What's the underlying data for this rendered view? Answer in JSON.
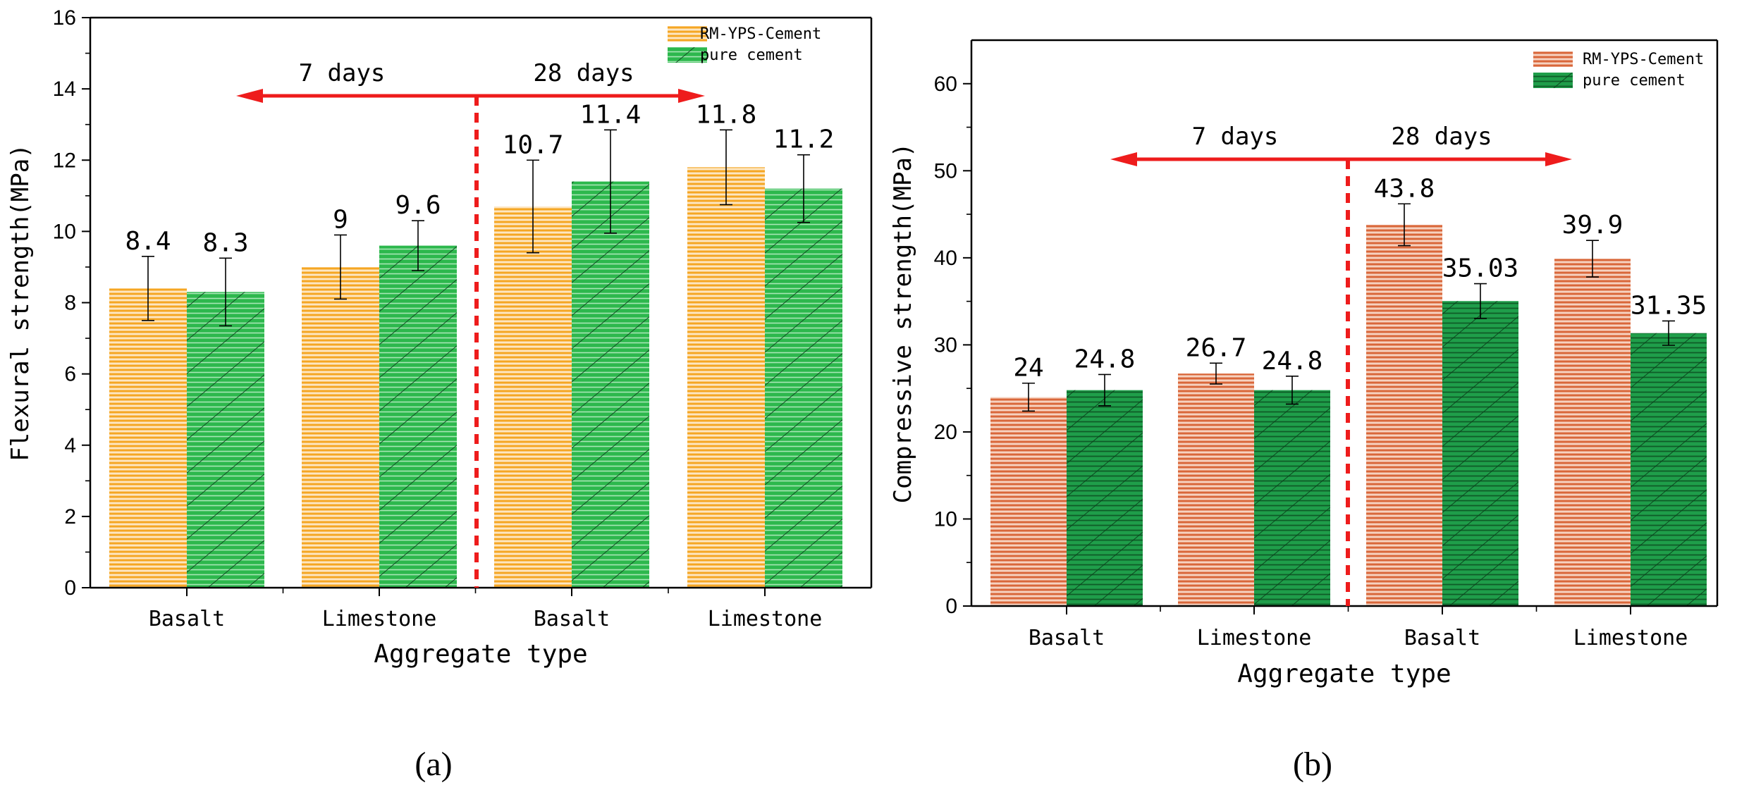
{
  "figure": {
    "panel_labels": [
      "(a)",
      "(b)"
    ]
  },
  "chart_data": [
    {
      "type": "bar",
      "panel": "(a)",
      "title": "",
      "xlabel": "Aggregate type",
      "ylabel": "Flexural strength(MPa)",
      "ylim": [
        0,
        16
      ],
      "yticks": [
        0,
        2,
        4,
        6,
        8,
        10,
        12,
        14,
        16
      ],
      "ytick_labels": [
        "0",
        "2",
        "4",
        "6",
        "8",
        "10",
        "12",
        "14",
        "16"
      ],
      "categories": [
        "Basalt",
        "Limestone",
        "Basalt",
        "Limestone"
      ],
      "series": [
        {
          "name": "RM-YPS-Cement",
          "values": [
            8.4,
            9,
            10.7,
            11.8
          ],
          "errors": [
            0.9,
            0.9,
            1.3,
            1.05
          ],
          "labels": [
            "8.4",
            "9",
            "10.7",
            "11.8"
          ],
          "color": "#f5a623"
        },
        {
          "name": "pure cement",
          "values": [
            8.3,
            9.6,
            11.4,
            11.2
          ],
          "errors": [
            0.95,
            0.7,
            1.45,
            0.95
          ],
          "labels": [
            "8.3",
            "9.6",
            "11.4",
            "11.2"
          ],
          "color": "#2db84d"
        }
      ],
      "annotations": {
        "left": "7 days",
        "right": "28 days"
      },
      "legend_position": "top-right"
    },
    {
      "type": "bar",
      "panel": "(b)",
      "title": "",
      "xlabel": "Aggregate type",
      "ylabel": "Compressive strength(MPa)",
      "ylim": [
        0,
        65
      ],
      "yticks": [
        0,
        10,
        20,
        30,
        40,
        50,
        60
      ],
      "ytick_labels": [
        "0",
        "10",
        "20",
        "30",
        "40",
        "50",
        "60"
      ],
      "categories": [
        "Basalt",
        "Limestone",
        "Basalt",
        "Limestone"
      ],
      "series": [
        {
          "name": "RM-YPS-Cement",
          "values": [
            24,
            26.7,
            43.8,
            39.9
          ],
          "errors": [
            1.6,
            1.2,
            2.4,
            2.1
          ],
          "labels": [
            "24",
            "26.7",
            "43.8",
            "39.9"
          ],
          "color": "#d9673a"
        },
        {
          "name": "pure cement",
          "values": [
            24.8,
            24.8,
            35.03,
            31.35
          ],
          "errors": [
            1.8,
            1.6,
            2.0,
            1.4
          ],
          "labels": [
            "24.8",
            "24.8",
            "35.03",
            "31.35"
          ],
          "color": "#1f9e4a"
        }
      ],
      "annotations": {
        "left": "7 days",
        "right": "28 days"
      },
      "legend_position": "top-right"
    }
  ]
}
